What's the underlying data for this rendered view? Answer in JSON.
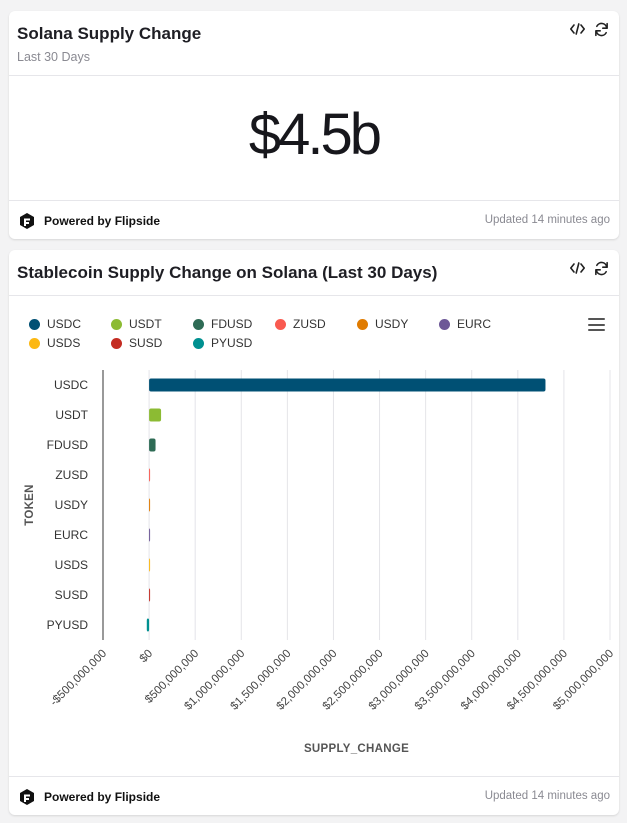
{
  "card1": {
    "title": "Solana Supply Change",
    "subtitle": "Last 30 Days",
    "value": "$4.5b",
    "footer": {
      "brand": "Powered by Flipside",
      "updated": "Updated 14 minutes ago"
    }
  },
  "card2": {
    "title": "Stablecoin Supply Change on Solana (Last 30 Days)",
    "footer": {
      "brand": "Powered by Flipside",
      "updated": "Updated 14 minutes ago"
    }
  },
  "icons": {
    "embed": "code-icon",
    "refresh": "refresh-icon",
    "menu": "menu-icon",
    "logo": "flipside-logo-icon"
  },
  "chart_data": {
    "type": "bar",
    "orientation": "horizontal",
    "categories": [
      "USDC",
      "USDT",
      "FDUSD",
      "ZUSD",
      "USDY",
      "EURC",
      "USDS",
      "SUSD",
      "PYUSD"
    ],
    "values": [
      4300000000,
      130000000,
      70000000,
      0,
      3000000,
      2000000,
      3000000,
      2000000,
      -25000000
    ],
    "colors": [
      "#005074",
      "#8cbb33",
      "#2e6b55",
      "#f95a50",
      "#e07b00",
      "#6d5897",
      "#fcb813",
      "#c42c22",
      "#009090"
    ],
    "xlabel": "SUPPLY_CHANGE",
    "ylabel": "TOKEN",
    "xlim": [
      -500000000,
      5000000000
    ],
    "xticks": [
      -500000000,
      0,
      500000000,
      1000000000,
      1500000000,
      2000000000,
      2500000000,
      3000000000,
      3500000000,
      4000000000,
      4500000000,
      5000000000
    ],
    "xtick_labels": [
      "-$500,000,000",
      "$0",
      "$500,000,000",
      "$1,000,000,000",
      "$1,500,000,000",
      "$2,000,000,000",
      "$2,500,000,000",
      "$3,000,000,000",
      "$3,500,000,000",
      "$4,000,000,000",
      "$4,500,000,000",
      "$5,000,000,000"
    ],
    "legend": [
      "USDC",
      "USDT",
      "FDUSD",
      "ZUSD",
      "USDY",
      "EURC",
      "USDS",
      "SUSD",
      "PYUSD"
    ],
    "legend_position": "top",
    "grid": true
  }
}
